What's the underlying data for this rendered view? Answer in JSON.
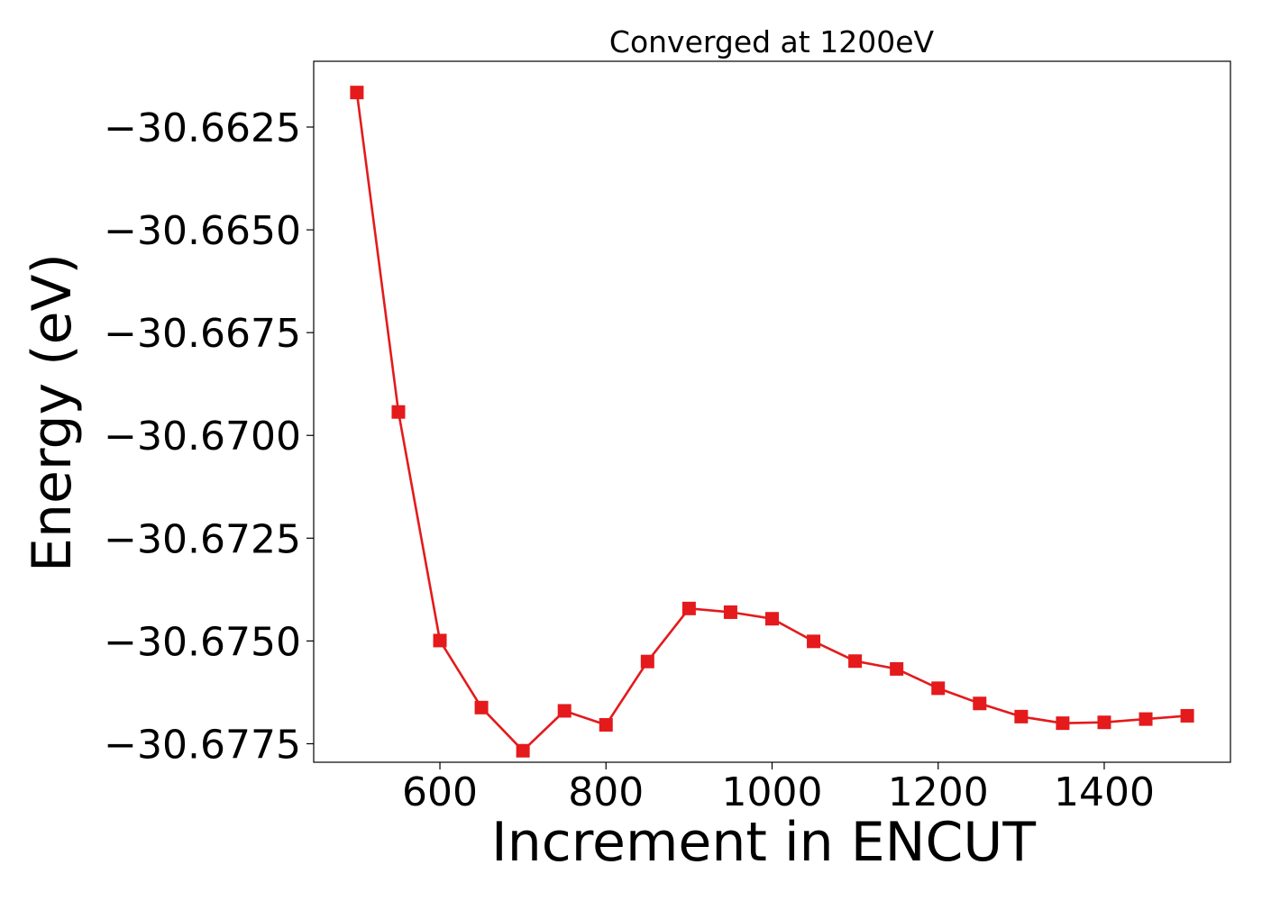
{
  "chart_data": {
    "type": "line",
    "title": "Converged at 1200eV",
    "xlabel": "Increment in ENCUT",
    "ylabel": "Energy (eV)",
    "xlim": [
      448,
      1552
    ],
    "ylim": [
      -30.67795,
      -30.6609
    ],
    "x_ticks": [
      600,
      800,
      1000,
      1200,
      1400
    ],
    "x_tick_labels": [
      "600",
      "800",
      "1000",
      "1200",
      "1400"
    ],
    "y_ticks": [
      -30.6625,
      -30.665,
      -30.6675,
      -30.67,
      -30.6725,
      -30.675,
      -30.6775
    ],
    "y_tick_labels": [
      "−30.6625",
      "−30.6650",
      "−30.6675",
      "−30.6700",
      "−30.6725",
      "−30.6750",
      "−30.6775"
    ],
    "grid": false,
    "legend": "none",
    "series": [
      {
        "color": "#e41a1c",
        "marker": "square",
        "x": [
          500,
          550,
          600,
          650,
          700,
          750,
          800,
          850,
          900,
          950,
          1000,
          1050,
          1100,
          1150,
          1200,
          1250,
          1300,
          1350,
          1400,
          1450,
          1500
        ],
        "y": [
          -30.66166,
          -30.66943,
          -30.67499,
          -30.67662,
          -30.67767,
          -30.6767,
          -30.67704,
          -30.6755,
          -30.67421,
          -30.6743,
          -30.67446,
          -30.67501,
          -30.67549,
          -30.67568,
          -30.67615,
          -30.67652,
          -30.67684,
          -30.677,
          -30.67698,
          -30.6769,
          -30.67682
        ]
      }
    ]
  }
}
